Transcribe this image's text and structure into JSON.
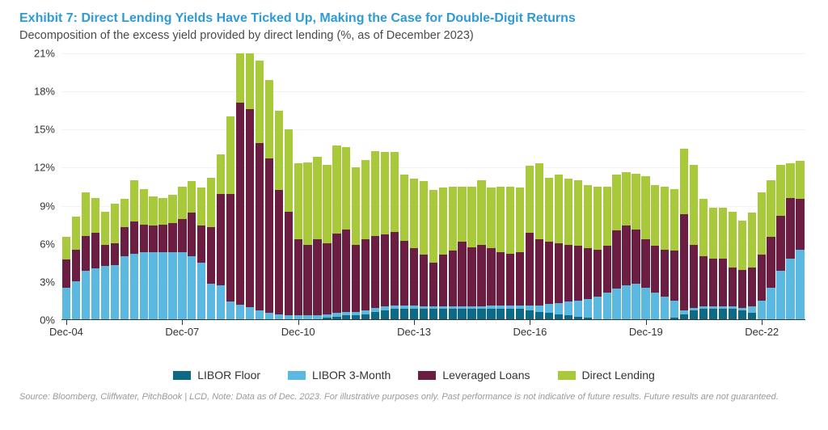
{
  "header": {
    "title": "Exhibit 7: Direct Lending Yields Have Ticked Up, Making the Case for Double-Digit Returns",
    "subtitle": "Decomposition of the excess yield provided by direct lending (%, as of December 2023)"
  },
  "chart": {
    "type": "stacked-bar",
    "background_color": "#ffffff",
    "grid_color": "#f2f2f2",
    "axis_color": "#333333",
    "label_fontsize": 13,
    "title_color": "#2e9bd6",
    "ylim": [
      0,
      21
    ],
    "ytick_step": 3,
    "yticks": [
      0,
      3,
      6,
      9,
      12,
      15,
      18,
      21
    ],
    "ytick_labels": [
      "0%",
      "3%",
      "6%",
      "9%",
      "12%",
      "15%",
      "18%",
      "21%"
    ],
    "xticks": [
      "Dec-04",
      "Dec-07",
      "Dec-10",
      "Dec-13",
      "Dec-16",
      "Dec-19",
      "Dec-22"
    ],
    "xtick_positions": [
      0,
      12,
      24,
      36,
      48,
      60,
      72
    ],
    "series": [
      {
        "key": "libor_floor",
        "label": "LIBOR Floor",
        "color": "#0d6986"
      },
      {
        "key": "libor_3m",
        "label": "LIBOR 3-Month",
        "color": "#5bb8e0"
      },
      {
        "key": "lev_loans",
        "label": "Leveraged Loans",
        "color": "#6b1e42"
      },
      {
        "key": "direct",
        "label": "Direct Lending",
        "color": "#a8c93a"
      }
    ],
    "periods": 77,
    "data": [
      [
        0.0,
        2.5,
        2.2,
        1.8
      ],
      [
        0.0,
        3.0,
        2.5,
        2.6
      ],
      [
        0.0,
        3.8,
        2.8,
        3.4
      ],
      [
        0.0,
        4.0,
        2.8,
        2.8
      ],
      [
        0.0,
        4.2,
        1.7,
        2.6
      ],
      [
        0.0,
        4.3,
        1.7,
        3.1
      ],
      [
        0.0,
        5.0,
        2.3,
        2.2
      ],
      [
        0.0,
        5.2,
        2.5,
        3.3
      ],
      [
        0.0,
        5.3,
        2.2,
        2.8
      ],
      [
        0.0,
        5.3,
        2.1,
        2.3
      ],
      [
        0.0,
        5.3,
        2.2,
        2.1
      ],
      [
        0.0,
        5.3,
        2.3,
        2.2
      ],
      [
        0.0,
        5.3,
        2.6,
        2.6
      ],
      [
        0.0,
        5.0,
        3.4,
        2.5
      ],
      [
        0.0,
        4.5,
        2.9,
        3.0
      ],
      [
        0.0,
        2.8,
        4.5,
        3.9
      ],
      [
        0.0,
        2.7,
        7.2,
        3.1
      ],
      [
        0.0,
        1.4,
        8.5,
        6.1
      ],
      [
        0.0,
        1.2,
        16.2,
        4.0
      ],
      [
        0.0,
        1.0,
        16.0,
        4.5
      ],
      [
        0.0,
        0.7,
        13.2,
        6.5
      ],
      [
        0.0,
        0.5,
        12.2,
        6.2
      ],
      [
        0.0,
        0.4,
        9.8,
        6.3
      ],
      [
        0.0,
        0.3,
        8.2,
        6.5
      ],
      [
        0.0,
        0.3,
        6.0,
        6.0
      ],
      [
        0.0,
        0.3,
        5.6,
        6.5
      ],
      [
        0.0,
        0.3,
        6.0,
        6.5
      ],
      [
        0.1,
        0.3,
        5.6,
        6.2
      ],
      [
        0.2,
        0.3,
        6.3,
        6.9
      ],
      [
        0.3,
        0.3,
        6.5,
        6.5
      ],
      [
        0.3,
        0.3,
        5.3,
        6.1
      ],
      [
        0.4,
        0.3,
        5.6,
        6.3
      ],
      [
        0.6,
        0.3,
        5.7,
        6.7
      ],
      [
        0.7,
        0.3,
        5.7,
        6.5
      ],
      [
        0.8,
        0.3,
        5.8,
        6.3
      ],
      [
        0.8,
        0.3,
        5.1,
        5.2
      ],
      [
        0.8,
        0.3,
        4.5,
        5.5
      ],
      [
        0.8,
        0.2,
        4.1,
        5.8
      ],
      [
        0.8,
        0.2,
        3.5,
        5.7
      ],
      [
        0.8,
        0.2,
        4.1,
        5.3
      ],
      [
        0.8,
        0.2,
        4.4,
        5.1
      ],
      [
        0.8,
        0.2,
        5.1,
        4.4
      ],
      [
        0.8,
        0.2,
        4.7,
        4.8
      ],
      [
        0.8,
        0.2,
        4.9,
        5.1
      ],
      [
        0.8,
        0.3,
        4.5,
        4.8
      ],
      [
        0.8,
        0.3,
        4.2,
        5.2
      ],
      [
        0.8,
        0.3,
        4.1,
        5.3
      ],
      [
        0.8,
        0.3,
        4.2,
        5.1
      ],
      [
        0.7,
        0.4,
        5.7,
        5.3
      ],
      [
        0.6,
        0.5,
        5.2,
        6.0
      ],
      [
        0.5,
        0.7,
        4.9,
        5.1
      ],
      [
        0.4,
        0.9,
        4.7,
        5.4
      ],
      [
        0.3,
        1.1,
        4.5,
        5.2
      ],
      [
        0.2,
        1.3,
        4.3,
        5.2
      ],
      [
        0.1,
        1.5,
        4.0,
        5.0
      ],
      [
        0.0,
        1.8,
        3.7,
        5.0
      ],
      [
        0.0,
        2.1,
        3.7,
        4.7
      ],
      [
        0.0,
        2.4,
        4.6,
        4.4
      ],
      [
        0.0,
        2.7,
        4.7,
        4.2
      ],
      [
        0.0,
        2.8,
        4.3,
        4.4
      ],
      [
        0.0,
        2.5,
        3.8,
        5.0
      ],
      [
        0.0,
        2.1,
        3.7,
        4.8
      ],
      [
        0.0,
        1.8,
        3.7,
        5.0
      ],
      [
        0.1,
        1.4,
        3.9,
        4.9
      ],
      [
        0.4,
        0.3,
        7.6,
        5.2
      ],
      [
        0.7,
        0.2,
        5.0,
        6.3
      ],
      [
        0.8,
        0.2,
        4.0,
        4.5
      ],
      [
        0.8,
        0.2,
        3.8,
        4.0
      ],
      [
        0.8,
        0.2,
        3.8,
        4.0
      ],
      [
        0.8,
        0.2,
        3.1,
        4.4
      ],
      [
        0.7,
        0.2,
        3.0,
        3.9
      ],
      [
        0.5,
        0.5,
        3.1,
        4.3
      ],
      [
        0.0,
        1.5,
        3.6,
        4.9
      ],
      [
        0.0,
        2.5,
        4.0,
        4.5
      ],
      [
        0.0,
        3.8,
        4.4,
        4.0
      ],
      [
        0.0,
        4.8,
        4.8,
        2.7
      ],
      [
        0.0,
        5.5,
        4.0,
        3.0
      ]
    ]
  },
  "source": "Source: Bloomberg, Cliffwater, PitchBook | LCD, Note: Data as of Dec. 2023. For illustrative purposes only. Past performance is not indicative of future results. Future results are not guaranteed."
}
